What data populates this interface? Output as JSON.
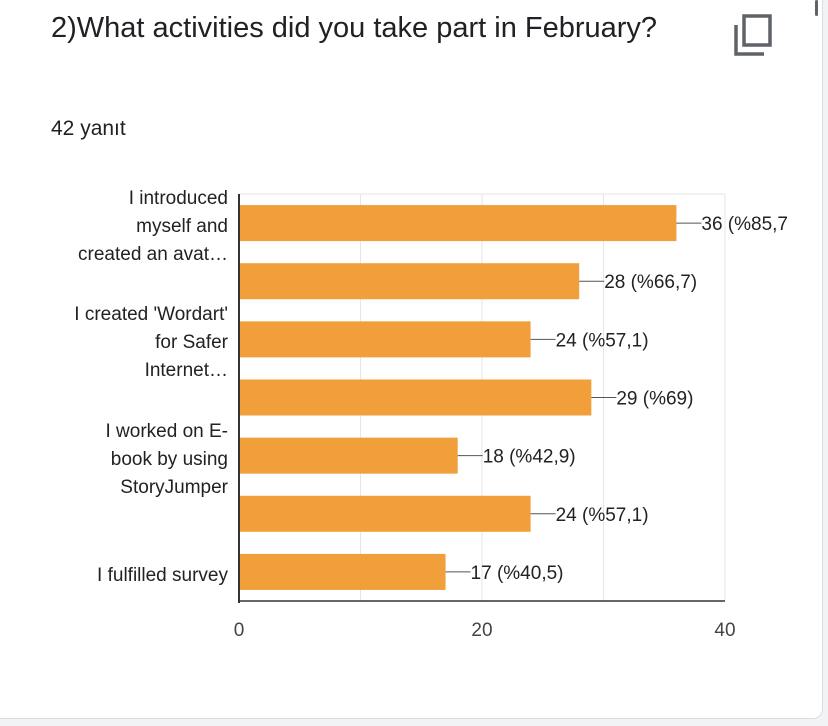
{
  "question": {
    "title": "2)What activities did you take part in February?",
    "response_count": "42 yanıt"
  },
  "icons": {
    "copy": "copy-icon"
  },
  "colors": {
    "bar": "#f09f3a",
    "grid": "#e6e6e6",
    "axis": "#333333",
    "text": "#222222"
  },
  "chart_data": {
    "type": "bar",
    "orientation": "horizontal",
    "title": "2)What activities did you take part in February?",
    "category_labels": [
      [
        "I introduced",
        "myself and",
        "created an avat…"
      ],
      [],
      [
        "I created 'Wordart'",
        "for Safer",
        "Internet…"
      ],
      [],
      [
        "I worked on E-",
        "book by using",
        "StoryJumper"
      ],
      [],
      [
        "I fulfilled survey"
      ]
    ],
    "values": [
      36,
      28,
      24,
      29,
      18,
      24,
      17
    ],
    "value_labels": [
      "36 (%85,7",
      "28 (%66,7)",
      "24 (%57,1)",
      "29 (%69)",
      "18 (%42,9)",
      "24 (%57,1)",
      "17 (%40,5)"
    ],
    "xlim": [
      0,
      40
    ],
    "x_ticks": [
      0,
      20,
      40
    ],
    "x_tick_labels": [
      "0",
      "20",
      "40"
    ],
    "grid": true,
    "xlabel": "",
    "ylabel": ""
  }
}
